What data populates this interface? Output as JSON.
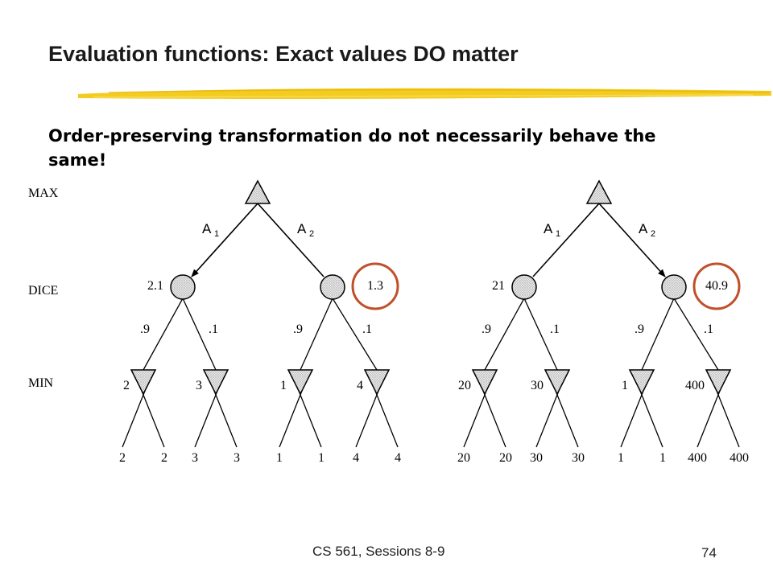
{
  "slide": {
    "title": "Evaluation functions: Exact values DO matter",
    "subtitle": "Order-preserving transformation do not necessarily behave the same!",
    "footer_course": "CS 561,  Sessions 8-9",
    "page_number": "74"
  },
  "row_labels": {
    "max": "MAX",
    "dice": "DICE",
    "min": "MIN"
  },
  "trees": [
    {
      "moves": [
        "A",
        "A"
      ],
      "move_subscripts": [
        "1",
        "2"
      ],
      "chosen_move": 0,
      "dice_values": [
        "2.1",
        "1.3"
      ],
      "circled_dice_value": 1,
      "probabilities": [
        ".9",
        ".1",
        ".9",
        ".1"
      ],
      "min_values": [
        "2",
        "3",
        "1",
        "4"
      ],
      "leaf_values": [
        "2",
        "2",
        "3",
        "3",
        "1",
        "1",
        "4",
        "4"
      ]
    },
    {
      "moves": [
        "A",
        "A"
      ],
      "move_subscripts": [
        "1",
        "2"
      ],
      "chosen_move": 1,
      "dice_values": [
        "21",
        "40.9"
      ],
      "circled_dice_value": 1,
      "probabilities": [
        ".9",
        ".1",
        ".9",
        ".1"
      ],
      "min_values": [
        "20",
        "30",
        "1",
        "400"
      ],
      "leaf_values": [
        "20",
        "20",
        "30",
        "30",
        "1",
        "1",
        "400",
        "400"
      ]
    }
  ],
  "colors": {
    "highlight_circle": "#c0502a",
    "title_stroke": "#f3cc1f",
    "node_fill": "#d7d7d7"
  }
}
